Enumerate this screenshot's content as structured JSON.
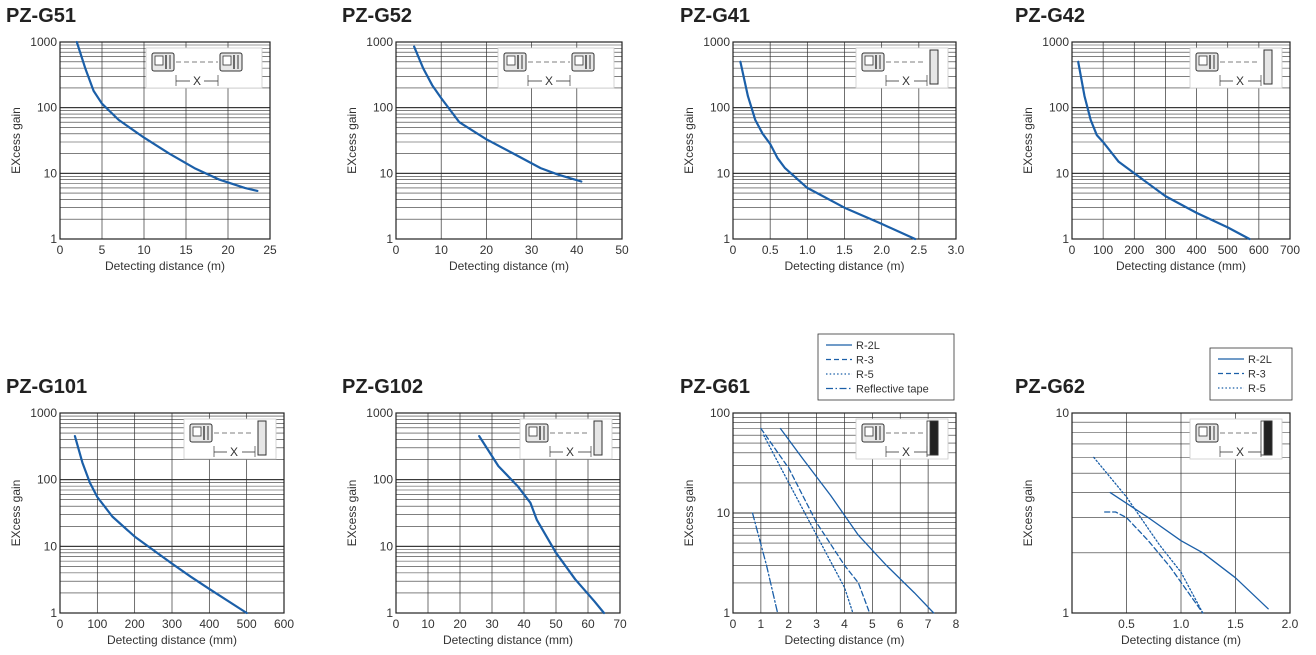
{
  "colors": {
    "curve": "#1b5fa8",
    "grid": "#333333",
    "frame": "#222222"
  },
  "chart_data": [
    {
      "id": "pzg51",
      "type": "line",
      "title": "PZ-G51",
      "xlabel": "Detecting distance (m)",
      "ylabel": "EXcess gain",
      "xlim": [
        0,
        25
      ],
      "xticks": [
        0,
        5,
        10,
        15,
        20,
        25
      ],
      "xtick_labels": [
        "0",
        "5",
        "10",
        "15",
        "20",
        "25"
      ],
      "ylog": true,
      "ylim": [
        1,
        1000
      ],
      "ytick_labels": [
        "1",
        "10",
        "100",
        "1000"
      ],
      "diagram": "emitter-receiver",
      "diagram_label": "X",
      "legend": [],
      "series": [
        {
          "style": "solid",
          "width": 2.2,
          "points": [
            [
              2,
              1000
            ],
            [
              3,
              400
            ],
            [
              4,
              180
            ],
            [
              5,
              115
            ],
            [
              7,
              65
            ],
            [
              10,
              35
            ],
            [
              13,
              20
            ],
            [
              16,
              12
            ],
            [
              19,
              8
            ],
            [
              22,
              6
            ],
            [
              23.5,
              5.4
            ]
          ]
        }
      ]
    },
    {
      "id": "pzg52",
      "type": "line",
      "title": "PZ-G52",
      "xlabel": "Detecting distance (m)",
      "ylabel": "EXcess gain",
      "xlim": [
        0,
        50
      ],
      "xticks": [
        0,
        10,
        20,
        30,
        40,
        50
      ],
      "xtick_labels": [
        "0",
        "10",
        "20",
        "30",
        "40",
        "50"
      ],
      "ylog": true,
      "ylim": [
        1,
        1000
      ],
      "ytick_labels": [
        "1",
        "10",
        "100",
        "1000"
      ],
      "diagram": "emitter-receiver",
      "diagram_label": "X",
      "legend": [],
      "series": [
        {
          "style": "solid",
          "width": 2.2,
          "points": [
            [
              4,
              850
            ],
            [
              6,
              400
            ],
            [
              8,
              220
            ],
            [
              10,
              140
            ],
            [
              14,
              60
            ],
            [
              20,
              33
            ],
            [
              26,
              20
            ],
            [
              32,
              12
            ],
            [
              36,
              9.5
            ],
            [
              41,
              7.5
            ]
          ]
        }
      ]
    },
    {
      "id": "pzg41",
      "type": "line",
      "title": "PZ-G41",
      "xlabel": "Detecting distance (m)",
      "ylabel": "EXcess gain",
      "xlim": [
        0,
        3.0
      ],
      "xticks": [
        0,
        0.5,
        1.0,
        1.5,
        2.0,
        2.5,
        3.0
      ],
      "xtick_labels": [
        "0",
        "0.5",
        "1.0",
        "1.5",
        "2.0",
        "2.5",
        "3.0"
      ],
      "ylog": true,
      "ylim": [
        1,
        1000
      ],
      "ytick_labels": [
        "1",
        "10",
        "100",
        "1000"
      ],
      "diagram": "reflector",
      "diagram_label": "X",
      "legend": [],
      "series": [
        {
          "style": "solid",
          "width": 2.2,
          "points": [
            [
              0.1,
              500
            ],
            [
              0.2,
              150
            ],
            [
              0.3,
              65
            ],
            [
              0.4,
              40
            ],
            [
              0.5,
              28
            ],
            [
              0.6,
              17
            ],
            [
              0.7,
              12
            ],
            [
              1.0,
              6
            ],
            [
              1.5,
              3
            ],
            [
              2.0,
              1.7
            ],
            [
              2.45,
              1
            ]
          ]
        }
      ]
    },
    {
      "id": "pzg42",
      "type": "line",
      "title": "PZ-G42",
      "xlabel": "Detecting distance (mm)",
      "ylabel": "EXcess gain",
      "xlim": [
        0,
        700
      ],
      "xticks": [
        0,
        100,
        200,
        300,
        400,
        500,
        600,
        700
      ],
      "xtick_labels": [
        "0",
        "100",
        "200",
        "300",
        "400",
        "500",
        "600",
        "700"
      ],
      "ylog": true,
      "ylim": [
        1,
        1000
      ],
      "ytick_labels": [
        "1",
        "10",
        "100",
        "1000"
      ],
      "diagram": "reflector",
      "diagram_label": "X",
      "legend": [],
      "series": [
        {
          "style": "solid",
          "width": 2.2,
          "points": [
            [
              20,
              500
            ],
            [
              40,
              150
            ],
            [
              60,
              65
            ],
            [
              80,
              38
            ],
            [
              100,
              30
            ],
            [
              150,
              15
            ],
            [
              200,
              10
            ],
            [
              300,
              4.5
            ],
            [
              400,
              2.5
            ],
            [
              500,
              1.5
            ],
            [
              570,
              1
            ]
          ]
        }
      ]
    },
    {
      "id": "pzg101",
      "type": "line",
      "title": "PZ-G101",
      "xlabel": "Detecting distance (mm)",
      "ylabel": "EXcess gain",
      "xlim": [
        0,
        600
      ],
      "xticks": [
        0,
        100,
        200,
        300,
        400,
        500,
        600
      ],
      "xtick_labels": [
        "0",
        "100",
        "200",
        "300",
        "400",
        "500",
        "600"
      ],
      "ylog": true,
      "ylim": [
        1,
        1000
      ],
      "ytick_labels": [
        "1",
        "10",
        "100",
        "1000"
      ],
      "diagram": "reflector",
      "diagram_label": "X",
      "legend": [],
      "series": [
        {
          "style": "solid",
          "width": 2.2,
          "points": [
            [
              40,
              450
            ],
            [
              60,
              180
            ],
            [
              80,
              90
            ],
            [
              100,
              55
            ],
            [
              140,
              28
            ],
            [
              200,
              14
            ],
            [
              300,
              5.5
            ],
            [
              350,
              3.5
            ],
            [
              400,
              2.3
            ],
            [
              500,
              1
            ]
          ]
        }
      ]
    },
    {
      "id": "pzg102",
      "type": "line",
      "title": "PZ-G102",
      "xlabel": "Detecting distance (mm)",
      "ylabel": "EXcess gain",
      "xlim": [
        0,
        70
      ],
      "xticks": [
        0,
        10,
        20,
        30,
        40,
        50,
        60,
        70
      ],
      "xtick_labels": [
        "0",
        "10",
        "20",
        "30",
        "40",
        "50",
        "60",
        "70"
      ],
      "ylog": true,
      "ylim": [
        1,
        1000
      ],
      "ytick_labels": [
        "1",
        "10",
        "100",
        "1000"
      ],
      "diagram": "reflector",
      "diagram_label": "X",
      "legend": [],
      "series": [
        {
          "style": "solid",
          "width": 2.2,
          "points": [
            [
              26,
              450
            ],
            [
              32,
              160
            ],
            [
              38,
              80
            ],
            [
              42,
              45
            ],
            [
              44,
              25
            ],
            [
              50,
              8
            ],
            [
              56,
              3.2
            ],
            [
              62,
              1.5
            ],
            [
              65,
              1
            ]
          ]
        }
      ]
    },
    {
      "id": "pzg61",
      "type": "line",
      "title": "PZ-G61",
      "xlabel": "Detecting distance (m)",
      "ylabel": "EXcess gain",
      "xlim": [
        0,
        8
      ],
      "xticks": [
        0,
        1,
        2,
        3,
        4,
        5,
        6,
        7,
        8
      ],
      "xtick_labels": [
        "0",
        "1",
        "2",
        "3",
        "4",
        "5",
        "6",
        "7",
        "8"
      ],
      "ylog": true,
      "ylim": [
        1,
        100
      ],
      "ytick_labels": [
        "1",
        "10",
        "100"
      ],
      "diagram": "reflector-dark",
      "diagram_label": "X",
      "legend": [
        "R-2L",
        "R-3",
        "R-5",
        "Reflective tape"
      ],
      "series": [
        {
          "name": "R-2L",
          "style": "solid",
          "width": 1.3,
          "points": [
            [
              1.7,
              70
            ],
            [
              2.5,
              35
            ],
            [
              3.5,
              15
            ],
            [
              4.5,
              6
            ],
            [
              5.5,
              3
            ],
            [
              6.5,
              1.6
            ],
            [
              7.2,
              1
            ]
          ]
        },
        {
          "name": "R-3",
          "style": "dashed",
          "width": 1.3,
          "points": [
            [
              1.0,
              70
            ],
            [
              2.0,
              28
            ],
            [
              3.0,
              8
            ],
            [
              4.0,
              3
            ],
            [
              4.5,
              2
            ],
            [
              4.9,
              1
            ]
          ]
        },
        {
          "name": "R-5",
          "style": "dotted",
          "width": 1.3,
          "points": [
            [
              1.1,
              60
            ],
            [
              2.0,
              20
            ],
            [
              3.0,
              6
            ],
            [
              4.0,
              1.8
            ],
            [
              4.3,
              1
            ]
          ]
        },
        {
          "name": "Reflective tape",
          "style": "dashdot",
          "width": 1.3,
          "points": [
            [
              0.7,
              10
            ],
            [
              1.2,
              3
            ],
            [
              1.6,
              1
            ]
          ]
        }
      ]
    },
    {
      "id": "pzg62",
      "type": "line",
      "title": "PZ-G62",
      "xlabel": "Detecting distance (m)",
      "ylabel": "EXcess gain",
      "xlim": [
        0,
        2.0
      ],
      "xticks": [
        0,
        0.5,
        1.0,
        1.5,
        2.0
      ],
      "xtick_labels": [
        "",
        "0.5",
        "1.0",
        "1.5",
        "2.0"
      ],
      "ylog": true,
      "ylim": [
        1,
        10
      ],
      "ytick_labels": [
        "1",
        "10"
      ],
      "diagram": "reflector-dark",
      "diagram_label": "X",
      "legend": [
        "R-2L",
        "R-3",
        "R-5"
      ],
      "series": [
        {
          "name": "R-2L",
          "style": "solid",
          "width": 1.3,
          "points": [
            [
              0.35,
              4
            ],
            [
              0.7,
              3
            ],
            [
              1.0,
              2.3
            ],
            [
              1.2,
              2
            ],
            [
              1.5,
              1.5
            ],
            [
              1.8,
              1.05
            ]
          ]
        },
        {
          "name": "R-3",
          "style": "dashed",
          "width": 1.3,
          "points": [
            [
              0.3,
              3.2
            ],
            [
              0.4,
              3.2
            ],
            [
              0.5,
              3
            ],
            [
              0.7,
              2.3
            ],
            [
              0.9,
              1.7
            ],
            [
              1.2,
              1
            ]
          ]
        },
        {
          "name": "R-5",
          "style": "dotted",
          "width": 1.3,
          "points": [
            [
              0.2,
              6
            ],
            [
              0.5,
              3.8
            ],
            [
              0.8,
              2.2
            ],
            [
              1.0,
              1.6
            ],
            [
              1.2,
              1
            ]
          ]
        }
      ]
    }
  ]
}
